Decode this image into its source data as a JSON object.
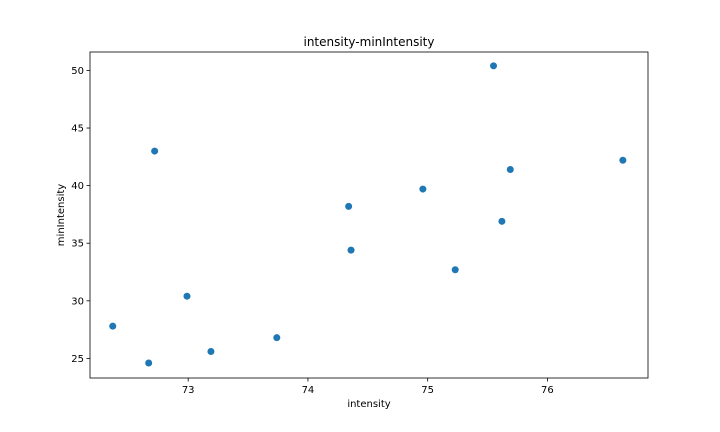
{
  "chart_data": {
    "type": "scatter",
    "title": "intensity-minIntensity",
    "xlabel": "intensity",
    "ylabel": "minIntensity",
    "xlim": [
      72.18,
      76.84
    ],
    "ylim": [
      23.3,
      51.6
    ],
    "xticks": [
      73,
      74,
      75,
      76
    ],
    "yticks": [
      25,
      30,
      35,
      40,
      45,
      50
    ],
    "grid": false,
    "color": "#1f77b4",
    "points": [
      {
        "x": 72.37,
        "y": 27.8
      },
      {
        "x": 72.67,
        "y": 24.6
      },
      {
        "x": 72.72,
        "y": 43.0
      },
      {
        "x": 72.99,
        "y": 30.4
      },
      {
        "x": 73.19,
        "y": 25.6
      },
      {
        "x": 73.74,
        "y": 26.8
      },
      {
        "x": 74.34,
        "y": 38.2
      },
      {
        "x": 74.36,
        "y": 34.4
      },
      {
        "x": 74.96,
        "y": 39.7
      },
      {
        "x": 75.23,
        "y": 32.7
      },
      {
        "x": 75.55,
        "y": 50.4
      },
      {
        "x": 75.62,
        "y": 36.9
      },
      {
        "x": 75.69,
        "y": 41.4
      },
      {
        "x": 76.63,
        "y": 42.2
      }
    ]
  }
}
